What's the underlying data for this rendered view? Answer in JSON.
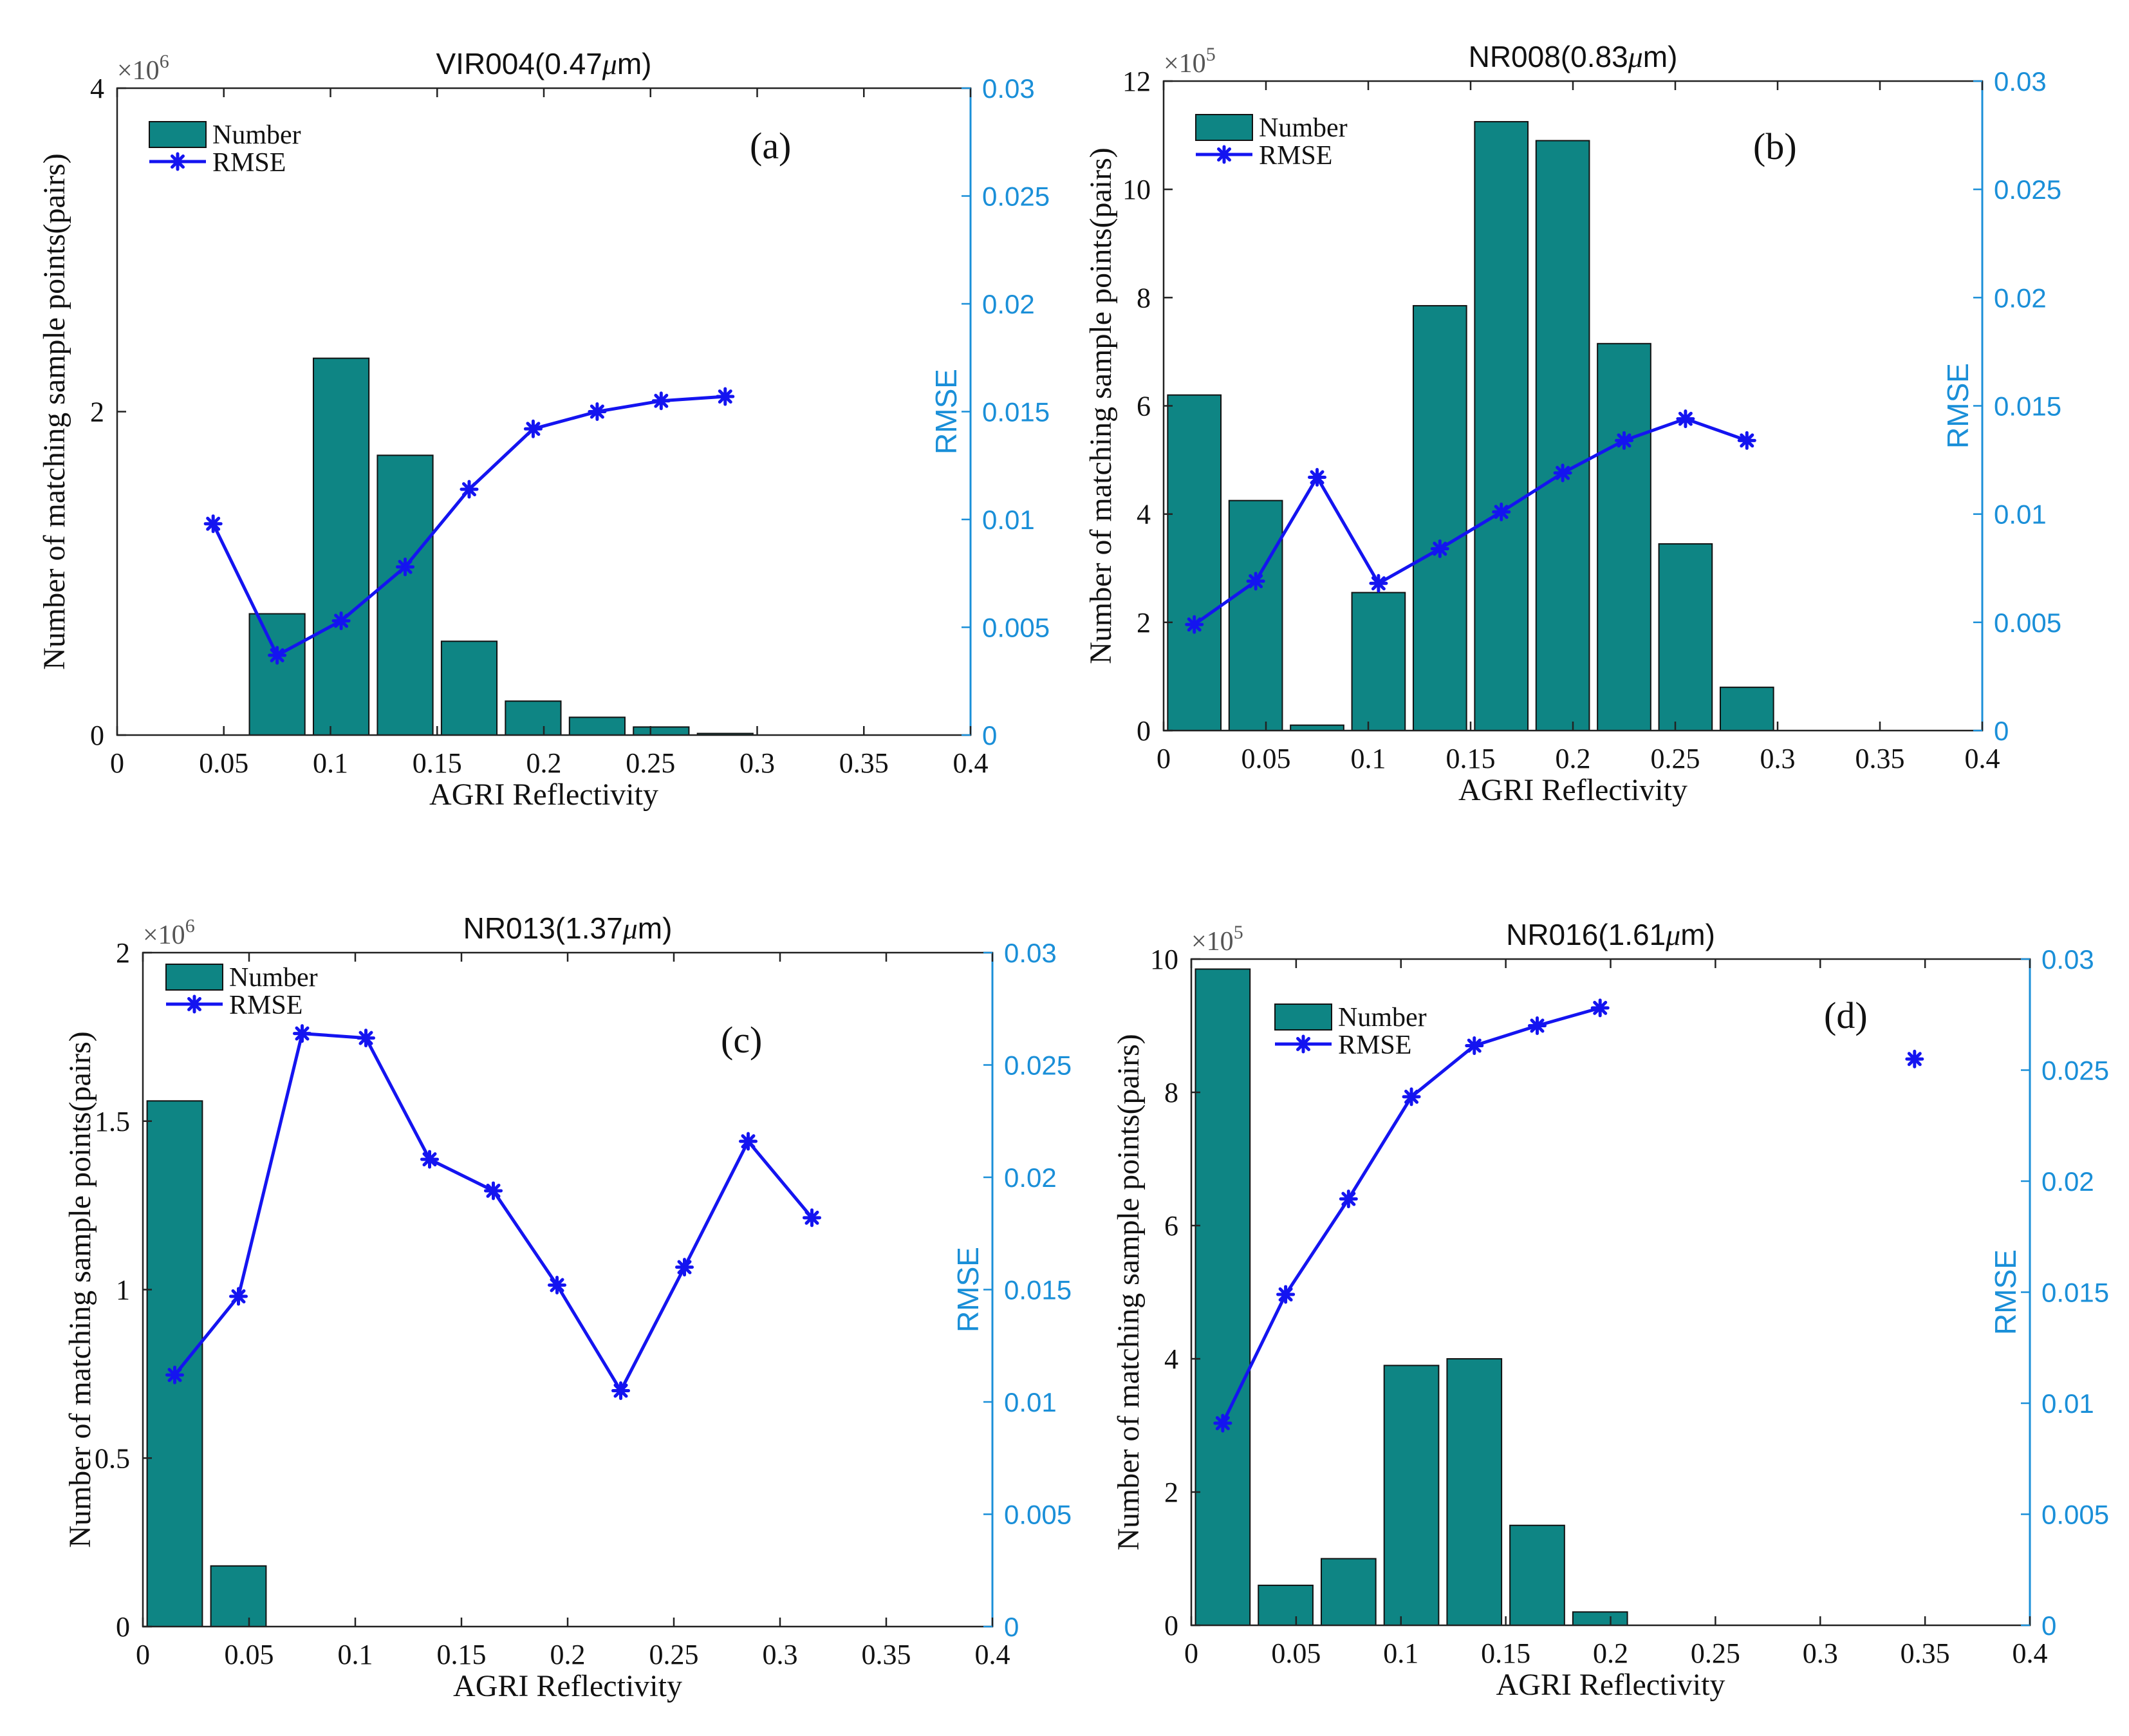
{
  "chart_data": [
    {
      "type": "bar",
      "panel_label": "(a)",
      "title": "VIR004(0.47",
      "title_unit": "μm)",
      "xlabel": "AGRI Reflectivity",
      "ylabel": "Number of matching sample points(pairs)",
      "ylabel_right": "RMSE",
      "y_exponent": "×10",
      "y_exponent_power": "6",
      "xlim": [
        0,
        0.4
      ],
      "ylim": [
        0,
        4
      ],
      "ylim_right": [
        0,
        0.03
      ],
      "x_ticks": [
        "0",
        "0.05",
        "0.1",
        "0.15",
        "0.2",
        "0.25",
        "0.3",
        "0.35",
        "0.4"
      ],
      "y_ticks": [
        "0",
        "2",
        "4"
      ],
      "y_right_ticks": [
        "0",
        "0.005",
        "0.01",
        "0.015",
        "0.02",
        "0.025",
        "0.03"
      ],
      "legend": {
        "position": "top-left",
        "entries": [
          "Number",
          "RMSE"
        ]
      },
      "series": [
        {
          "name": "Number",
          "kind": "bar",
          "x": [
            0.075,
            0.105,
            0.135,
            0.165,
            0.195,
            0.225,
            0.255,
            0.285
          ],
          "values": [
            0.75,
            2.33,
            1.73,
            0.58,
            0.21,
            0.11,
            0.05,
            0.01
          ]
        },
        {
          "name": "RMSE",
          "kind": "line",
          "x": [
            0.045,
            0.075,
            0.105,
            0.135,
            0.165,
            0.195,
            0.225,
            0.255,
            0.285
          ],
          "values": [
            0.0098,
            0.0037,
            0.0053,
            0.0078,
            0.0114,
            0.0142,
            0.015,
            0.0155,
            0.0157
          ]
        }
      ],
      "colors": {
        "bar": "#0e8584",
        "line": "#1414f0",
        "right_axis": "#1a8fd8"
      }
    },
    {
      "type": "bar",
      "panel_label": "(b)",
      "title": "NR008(0.83",
      "title_unit": "μm)",
      "xlabel": "AGRI Reflectivity",
      "ylabel": "Number of matching sample points(pairs)",
      "ylabel_right": "RMSE",
      "y_exponent": "×10",
      "y_exponent_power": "5",
      "xlim": [
        0,
        0.4
      ],
      "ylim": [
        0,
        12
      ],
      "ylim_right": [
        0,
        0.03
      ],
      "x_ticks": [
        "0",
        "0.05",
        "0.1",
        "0.15",
        "0.2",
        "0.25",
        "0.3",
        "0.35",
        "0.4"
      ],
      "y_ticks": [
        "0",
        "2",
        "4",
        "6",
        "8",
        "10",
        "12"
      ],
      "y_right_ticks": [
        "0",
        "0.005",
        "0.01",
        "0.015",
        "0.02",
        "0.025",
        "0.03"
      ],
      "legend": {
        "position": "top-left",
        "entries": [
          "Number",
          "RMSE"
        ]
      },
      "series": [
        {
          "name": "Number",
          "kind": "bar",
          "x": [
            0.015,
            0.045,
            0.075,
            0.105,
            0.135,
            0.165,
            0.195,
            0.225,
            0.255,
            0.285
          ],
          "values": [
            6.2,
            4.25,
            0.1,
            2.55,
            7.85,
            11.25,
            10.9,
            7.15,
            3.45,
            0.8
          ]
        },
        {
          "name": "RMSE",
          "kind": "line",
          "x": [
            0.015,
            0.045,
            0.075,
            0.105,
            0.135,
            0.165,
            0.195,
            0.225,
            0.255,
            0.285
          ],
          "values": [
            0.0049,
            0.0069,
            0.0117,
            0.0068,
            0.0084,
            0.0101,
            0.0119,
            0.0134,
            0.0144,
            0.0134
          ]
        }
      ],
      "colors": {
        "bar": "#0e8584",
        "line": "#1414f0",
        "right_axis": "#1a8fd8"
      }
    },
    {
      "type": "bar",
      "panel_label": "(c)",
      "title": "NR013(1.37",
      "title_unit": "μm)",
      "xlabel": "AGRI Reflectivity",
      "ylabel": "Number of matching sample points(pairs)",
      "ylabel_right": "RMSE",
      "y_exponent": "×10",
      "y_exponent_power": "6",
      "xlim": [
        0,
        0.4
      ],
      "ylim": [
        0,
        2
      ],
      "ylim_right": [
        0,
        0.03
      ],
      "x_ticks": [
        "0",
        "0.05",
        "0.1",
        "0.15",
        "0.2",
        "0.25",
        "0.3",
        "0.35",
        "0.4"
      ],
      "y_ticks": [
        "0",
        "0.5",
        "1",
        "1.5",
        "2"
      ],
      "y_right_ticks": [
        "0",
        "0.005",
        "0.01",
        "0.015",
        "0.02",
        "0.025",
        "0.03"
      ],
      "legend": {
        "position": "top-left",
        "entries": [
          "Number",
          "RMSE"
        ]
      },
      "series": [
        {
          "name": "Number",
          "kind": "bar",
          "x": [
            0.015,
            0.045
          ],
          "values": [
            1.56,
            0.18
          ]
        },
        {
          "name": "RMSE",
          "kind": "line",
          "x": [
            0.015,
            0.045,
            0.075,
            0.105,
            0.135,
            0.165,
            0.195,
            0.225,
            0.255,
            0.285,
            0.315
          ],
          "values": [
            0.0112,
            0.0147,
            0.0264,
            0.0262,
            0.0208,
            0.0194,
            0.0152,
            0.0105,
            0.016,
            0.0216,
            0.0182
          ]
        }
      ],
      "colors": {
        "bar": "#0e8584",
        "line": "#1414f0",
        "right_axis": "#1a8fd8"
      }
    },
    {
      "type": "bar",
      "panel_label": "(d)",
      "title": "NR016(1.61",
      "title_unit": "μm)",
      "xlabel": "AGRI Reflectivity",
      "ylabel": "Number of matching sample points(pairs)",
      "ylabel_right": "RMSE",
      "y_exponent": "×10",
      "y_exponent_power": "5",
      "xlim": [
        0,
        0.4
      ],
      "ylim": [
        0,
        10
      ],
      "ylim_right": [
        0,
        0.03
      ],
      "x_ticks": [
        "0",
        "0.05",
        "0.1",
        "0.15",
        "0.2",
        "0.25",
        "0.3",
        "0.35",
        "0.4"
      ],
      "y_ticks": [
        "0",
        "2",
        "4",
        "6",
        "8",
        "10"
      ],
      "y_right_ticks": [
        "0",
        "0.005",
        "0.01",
        "0.015",
        "0.02",
        "0.025",
        "0.03"
      ],
      "legend": {
        "position": "top-left",
        "entries": [
          "Number",
          "RMSE"
        ]
      },
      "series": [
        {
          "name": "Number",
          "kind": "bar",
          "x": [
            0.015,
            0.045,
            0.075,
            0.105,
            0.135,
            0.165,
            0.195
          ],
          "values": [
            9.85,
            0.6,
            1.0,
            3.9,
            4.0,
            1.5,
            0.2
          ]
        },
        {
          "name": "RMSE",
          "kind": "line",
          "x": [
            0.015,
            0.045,
            0.075,
            0.105,
            0.135,
            0.165,
            0.195
          ],
          "values": [
            0.0091,
            0.0149,
            0.0192,
            0.0238,
            0.0261,
            0.027,
            0.0278
          ]
        },
        {
          "name": "RMSE",
          "kind": "point",
          "x": [
            0.345
          ],
          "values": [
            0.0255
          ]
        }
      ],
      "colors": {
        "bar": "#0e8584",
        "line": "#1414f0",
        "right_axis": "#1a8fd8"
      }
    }
  ]
}
